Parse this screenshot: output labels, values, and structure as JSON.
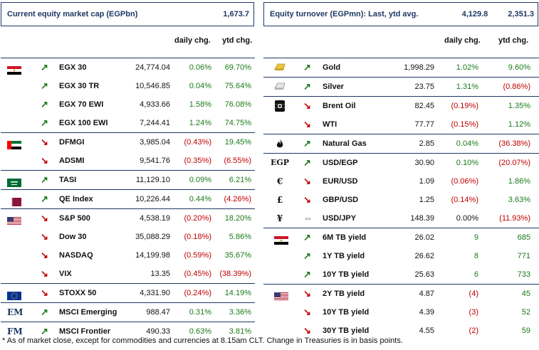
{
  "left": {
    "title": "Current equity market cap (EGPbn)",
    "title_value": "1,673.7",
    "col_daily": "daily chg.",
    "col_ytd": "ytd chg.",
    "rows": [
      {
        "flag": "egypt",
        "arrow": "up",
        "name": "EGX 30",
        "value": "24,774.04",
        "daily": "0.06%",
        "ytd": "69.70%",
        "dc": "pos",
        "yc": "pos",
        "sep": true
      },
      {
        "flag": "",
        "arrow": "up",
        "name": "EGX 30 TR",
        "value": "10,546.85",
        "daily": "0.04%",
        "ytd": "75.64%",
        "dc": "pos",
        "yc": "pos"
      },
      {
        "flag": "",
        "arrow": "up",
        "name": "EGX 70 EWI",
        "value": "4,933.66",
        "daily": "1.58%",
        "ytd": "76.08%",
        "dc": "pos",
        "yc": "pos"
      },
      {
        "flag": "",
        "arrow": "up",
        "name": "EGX 100 EWI",
        "value": "7,244.41",
        "daily": "1.24%",
        "ytd": "74.75%",
        "dc": "pos",
        "yc": "pos"
      },
      {
        "flag": "uae",
        "arrow": "down",
        "name": "DFMGI",
        "value": "3,985.04",
        "daily": "(0.43%)",
        "ytd": "19.45%",
        "dc": "neg",
        "yc": "pos",
        "sep": true
      },
      {
        "flag": "",
        "arrow": "down",
        "name": "ADSMI",
        "value": "9,541.76",
        "daily": "(0.35%)",
        "ytd": "(6.55%)",
        "dc": "neg",
        "yc": "neg"
      },
      {
        "flag": "saudi",
        "arrow": "up",
        "name": "TASI",
        "value": "11,129.10",
        "daily": "0.09%",
        "ytd": "6.21%",
        "dc": "pos",
        "yc": "pos",
        "sep": true
      },
      {
        "flag": "qatar",
        "arrow": "up",
        "name": "QE Index",
        "value": "10,226.44",
        "daily": "0.44%",
        "ytd": "(4.26%)",
        "dc": "pos",
        "yc": "neg",
        "sep": true
      },
      {
        "flag": "us",
        "arrow": "down",
        "name": "S&P 500",
        "value": "4,538.19",
        "daily": "(0.20%)",
        "ytd": "18.20%",
        "dc": "neg",
        "yc": "pos",
        "sep": true
      },
      {
        "flag": "",
        "arrow": "down",
        "name": "Dow 30",
        "value": "35,088.29",
        "daily": "(0.18%)",
        "ytd": "5.86%",
        "dc": "neg",
        "yc": "pos"
      },
      {
        "flag": "",
        "arrow": "down",
        "name": "NASDAQ",
        "value": "14,199.98",
        "daily": "(0.59%)",
        "ytd": "35.67%",
        "dc": "neg",
        "yc": "pos"
      },
      {
        "flag": "",
        "arrow": "down",
        "name": "VIX",
        "value": "13.35",
        "daily": "(0.45%)",
        "ytd": "(38.39%)",
        "dc": "neg",
        "yc": "neg"
      },
      {
        "flag": "eu",
        "arrow": "down",
        "name": "STOXX 50",
        "value": "4,331.90",
        "daily": "(0.24%)",
        "ytd": "14.19%",
        "dc": "neg",
        "yc": "pos",
        "sep": true
      },
      {
        "flag": "EM",
        "arrow": "up",
        "name": "MSCI Emerging",
        "value": "988.47",
        "daily": "0.31%",
        "ytd": "3.36%",
        "dc": "pos",
        "yc": "pos",
        "sep": true
      },
      {
        "flag": "FM",
        "arrow": "up",
        "name": "MSCI Frontier",
        "value": "490.33",
        "daily": "0.63%",
        "ytd": "3.81%",
        "dc": "pos",
        "yc": "pos",
        "sep": true
      }
    ]
  },
  "right": {
    "title": "Equity turnover (EGPmn): Last, ytd avg.",
    "title_value1": "4,129.8",
    "title_value2": "2,351.3",
    "col_daily": "daily chg.",
    "col_ytd": "ytd chg.",
    "rows": [
      {
        "icon": "gold",
        "arrow": "up",
        "name": "Gold",
        "value": "1,998.29",
        "daily": "1.02%",
        "ytd": "9.60%",
        "dc": "pos",
        "yc": "pos",
        "sep": true
      },
      {
        "icon": "silver",
        "arrow": "up",
        "name": "Silver",
        "value": "23.75",
        "daily": "1.31%",
        "ytd": "(0.86%)",
        "dc": "pos",
        "yc": "neg",
        "sep": true
      },
      {
        "icon": "oil",
        "arrow": "down",
        "name": "Brent Oil",
        "value": "82.45",
        "daily": "(0.19%)",
        "ytd": "1.35%",
        "dc": "neg",
        "yc": "pos",
        "sep": true
      },
      {
        "icon": "",
        "arrow": "down",
        "name": "WTI",
        "value": "77.77",
        "daily": "(0.15%)",
        "ytd": "1.12%",
        "dc": "neg",
        "yc": "pos"
      },
      {
        "icon": "gas",
        "arrow": "up",
        "name": "Natural Gas",
        "value": "2.85",
        "daily": "0.04%",
        "ytd": "(36.38%)",
        "dc": "pos",
        "yc": "neg",
        "sep": true
      },
      {
        "icon": "EGP",
        "arrow": "up",
        "name": "USD/EGP",
        "value": "30.90",
        "daily": "0.10%",
        "ytd": "(20.07%)",
        "dc": "pos",
        "yc": "neg",
        "sep": true
      },
      {
        "icon": "€",
        "arrow": "down",
        "name": "EUR/USD",
        "value": "1.09",
        "daily": "(0.06%)",
        "ytd": "1.86%",
        "dc": "neg",
        "yc": "pos"
      },
      {
        "icon": "£",
        "arrow": "down",
        "name": "GBP/USD",
        "value": "1.25",
        "daily": "(0.14%)",
        "ytd": "3.63%",
        "dc": "neg",
        "yc": "pos"
      },
      {
        "icon": "¥",
        "arrow": "flat",
        "name": "USD/JPY",
        "value": "148.39",
        "daily": "0.00%",
        "ytd": "(11.93%)",
        "dc": "zero",
        "yc": "neg"
      },
      {
        "icon": "egypt",
        "arrow": "up",
        "name": "6M TB yield",
        "value": "26.02",
        "daily": "9",
        "ytd": "685",
        "dc": "pos",
        "yc": "pos",
        "sep": true
      },
      {
        "icon": "",
        "arrow": "up",
        "name": "1Y TB yield",
        "value": "26.62",
        "daily": "8",
        "ytd": "771",
        "dc": "pos",
        "yc": "pos"
      },
      {
        "icon": "",
        "arrow": "up",
        "name": "10Y TB yield",
        "value": "25.63",
        "daily": "6",
        "ytd": "733",
        "dc": "pos",
        "yc": "pos"
      },
      {
        "icon": "us",
        "arrow": "down",
        "name": "2Y TB yield",
        "value": "4.87",
        "daily": "(4)",
        "ytd": "45",
        "dc": "neg",
        "yc": "pos",
        "sep": true
      },
      {
        "icon": "",
        "arrow": "down",
        "name": "10Y TB yield",
        "value": "4.39",
        "daily": "(3)",
        "ytd": "52",
        "dc": "neg",
        "yc": "pos"
      },
      {
        "icon": "",
        "arrow": "down",
        "name": "30Y TB yield",
        "value": "4.55",
        "daily": "(2)",
        "ytd": "59",
        "dc": "neg",
        "yc": "pos"
      }
    ]
  },
  "footnote": "* As of market close, except for commodities and currencies at 8.15am CLT. Change in Treasuries is in basis points.",
  "colors": {
    "positive": "#1a7a1a",
    "negative": "#c00000",
    "header": "#1f3864"
  }
}
